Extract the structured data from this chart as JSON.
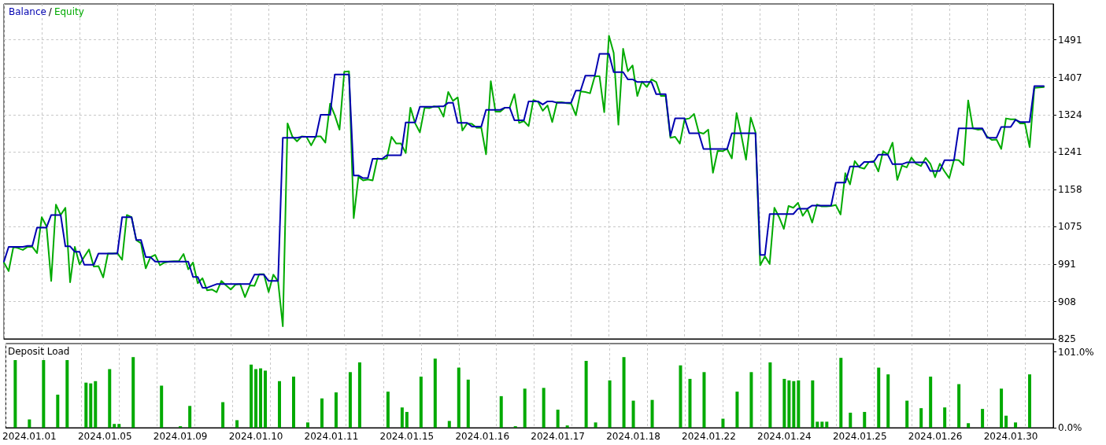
{
  "chart_data": [
    {
      "type": "line",
      "legend": "top left",
      "tick_labels": "y",
      "grid": true,
      "line_style": "solid",
      "annotations": [
        "/"
      ],
      "categories": [
        null,
        null,
        null,
        null,
        null,
        "2024.01.01",
        null,
        null,
        null,
        null,
        null,
        null,
        null,
        null,
        null,
        null,
        null,
        null,
        null,
        null,
        null,
        "2024.01.05",
        null,
        null,
        null,
        null,
        null,
        null,
        null,
        null,
        null,
        null,
        null,
        null,
        null,
        null,
        null,
        "2024.01.09",
        null,
        null,
        null,
        null,
        null,
        null,
        null,
        null,
        null,
        null,
        null,
        null,
        null,
        null,
        null,
        "2024.01.10",
        null,
        null,
        null,
        null,
        null,
        null,
        null,
        null,
        null,
        null,
        null,
        null,
        null,
        null,
        null,
        "2024.01.11",
        null,
        null,
        null,
        null,
        null,
        null,
        null,
        null,
        null,
        null,
        null,
        null,
        null,
        null,
        null,
        "2024.01.15",
        null,
        null,
        null,
        null,
        null,
        null,
        null,
        null,
        null,
        null,
        null,
        null,
        null,
        null,
        null,
        "2024.01.16",
        null,
        null,
        null,
        null,
        null,
        null,
        null,
        null,
        null,
        null,
        null,
        null,
        null,
        null,
        null,
        "2024.01.17",
        null,
        null,
        null,
        null,
        null,
        null,
        null,
        null,
        null,
        null,
        null,
        null,
        null,
        null,
        null,
        "2024.01.18",
        null,
        null,
        null,
        null,
        null,
        null,
        null,
        null,
        null,
        null,
        null,
        null,
        null,
        null,
        null,
        "2024.01.22",
        null,
        null,
        null,
        null,
        null,
        null,
        null,
        null,
        null,
        null,
        null,
        null,
        null,
        null,
        null,
        "2024.01.24",
        null,
        null,
        null,
        null,
        null,
        null,
        null,
        null,
        null,
        null,
        null,
        null,
        null,
        null,
        null,
        "2024.01.25",
        null,
        null,
        null,
        null,
        null,
        null,
        null,
        null,
        null,
        null,
        null,
        null,
        null,
        null,
        null,
        "2024.01.26",
        null,
        null,
        null,
        null,
        null,
        null,
        null,
        null,
        null,
        null,
        null,
        null,
        null,
        null,
        null,
        "2024.01.30",
        null,
        null,
        null,
        null,
        null,
        null,
        null,
        null,
        null
      ],
      "series": [
        {
          "name": "Balance",
          "color": "#0000b0",
          "values": [
            997,
            1030,
            1030,
            1030,
            1030,
            1032,
            1032,
            1073,
            1073,
            1073,
            1101,
            1101,
            1101,
            1031,
            1031,
            1019,
            1019,
            990,
            990,
            990,
            1015,
            1015,
            1015,
            1015,
            1015,
            1096,
            1096,
            1096,
            1045,
            1045,
            1007,
            1007,
            997,
            997,
            997,
            997,
            997,
            997,
            997,
            997,
            963,
            963,
            939,
            939,
            943,
            947,
            947,
            947,
            947,
            947,
            947,
            947,
            947,
            968,
            968,
            968,
            954,
            954,
            954,
            1273,
            1273,
            1273,
            1273,
            1275,
            1275,
            1275,
            1275,
            1324,
            1324,
            1324,
            1414,
            1414,
            1414,
            1414,
            1189,
            1189,
            1183,
            1183,
            1226,
            1226,
            1226,
            1234,
            1234,
            1234,
            1234,
            1307,
            1307,
            1307,
            1342,
            1342,
            1342,
            1342,
            1343,
            1343,
            1351,
            1351,
            1306,
            1306,
            1306,
            1298,
            1298,
            1298,
            1335,
            1335,
            1335,
            1335,
            1340,
            1340,
            1312,
            1312,
            1312,
            1354,
            1354,
            1354,
            1347,
            1354,
            1354,
            1351,
            1351,
            1351,
            1351,
            1378,
            1378,
            1411,
            1411,
            1411,
            1460,
            1460,
            1460,
            1419,
            1419,
            1419,
            1403,
            1403,
            1397,
            1397,
            1397,
            1397,
            1370,
            1370,
            1370,
            1277,
            1316,
            1316,
            1316,
            1283,
            1283,
            1283,
            1248,
            1248,
            1248,
            1248,
            1248,
            1248,
            1283,
            1283,
            1283,
            1283,
            1283,
            1283,
            1012,
            1012,
            1103,
            1103,
            1103,
            1103,
            1103,
            1103,
            1115,
            1115,
            1115,
            1122,
            1122,
            1122,
            1122,
            1122,
            1173,
            1173,
            1173,
            1209,
            1209,
            1209,
            1219,
            1219,
            1219,
            1235,
            1235,
            1235,
            1214,
            1214,
            1214,
            1218,
            1218,
            1218,
            1218,
            1218,
            1199,
            1199,
            1199,
            1223,
            1223,
            1223,
            1294,
            1294,
            1294,
            1294,
            1294,
            1294,
            1273,
            1273,
            1273,
            1297,
            1297,
            1297,
            1313,
            1308,
            1308,
            1308,
            1388,
            1388,
            1388,
            null,
            null
          ]
        },
        {
          "name": "Equity",
          "color": "#00aa00",
          "values": [
            995,
            976,
            1030,
            1027,
            1023,
            1030,
            1030,
            1016,
            1096,
            1076,
            954,
            1124,
            1101,
            1117,
            951,
            1030,
            991,
            1008,
            1024,
            986,
            987,
            962,
            1015,
            1015,
            1016,
            1001,
            1101,
            1096,
            1045,
            1038,
            982,
            1007,
            1012,
            989,
            995,
            997,
            998,
            998,
            1014,
            980,
            995,
            949,
            960,
            933,
            935,
            929,
            954,
            944,
            935,
            946,
            947,
            918,
            944,
            943,
            969,
            969,
            929,
            968,
            953,
            853,
            1305,
            1276,
            1265,
            1276,
            1275,
            1256,
            1276,
            1276,
            1262,
            1349,
            1323,
            1291,
            1420,
            1421,
            1094,
            1186,
            1178,
            1180,
            1178,
            1227,
            1225,
            1227,
            1275,
            1260,
            1260,
            1239,
            1340,
            1305,
            1285,
            1340,
            1339,
            1343,
            1341,
            1320,
            1375,
            1355,
            1363,
            1289,
            1305,
            1304,
            1295,
            1295,
            1236,
            1399,
            1331,
            1331,
            1340,
            1340,
            1370,
            1306,
            1310,
            1299,
            1357,
            1353,
            1333,
            1345,
            1308,
            1352,
            1352,
            1350,
            1349,
            1323,
            1376,
            1375,
            1372,
            1410,
            1410,
            1330,
            1500,
            1462,
            1302,
            1471,
            1421,
            1434,
            1366,
            1398,
            1386,
            1403,
            1397,
            1366,
            1366,
            1273,
            1275,
            1260,
            1314,
            1316,
            1326,
            1285,
            1282,
            1291,
            1195,
            1244,
            1243,
            1248,
            1227,
            1328,
            1279,
            1224,
            1318,
            1285,
            989,
            1009,
            992,
            1117,
            1096,
            1070,
            1121,
            1117,
            1128,
            1099,
            1114,
            1084,
            1124,
            1120,
            1120,
            1121,
            1123,
            1102,
            1194,
            1169,
            1221,
            1207,
            1204,
            1219,
            1221,
            1198,
            1243,
            1236,
            1262,
            1179,
            1211,
            1207,
            1229,
            1215,
            1210,
            1228,
            1215,
            1185,
            1215,
            1198,
            1183,
            1224,
            1223,
            1212,
            1356,
            1294,
            1291,
            1292,
            1276,
            1268,
            1269,
            1248,
            1316,
            1314,
            1314,
            1305,
            1305,
            1252,
            1384,
            1385,
            1386,
            null,
            null
          ]
        }
      ],
      "ylim": [
        825,
        1571
      ],
      "yticks": [
        825,
        908,
        991,
        1075,
        1158,
        1241,
        1324,
        1407,
        1491
      ]
    },
    {
      "type": "bar",
      "title": "Deposit Load",
      "grid": "x",
      "color": "#00aa00",
      "categories": [
        null,
        null,
        null,
        null,
        null,
        "2024.01.01",
        null,
        null,
        null,
        null,
        null,
        null,
        null,
        null,
        null,
        null,
        null,
        null,
        null,
        null,
        null,
        "2024.01.05",
        null,
        null,
        null,
        null,
        null,
        null,
        null,
        null,
        null,
        null,
        null,
        null,
        null,
        null,
        null,
        "2024.01.09",
        null,
        null,
        null,
        null,
        null,
        null,
        null,
        null,
        null,
        null,
        null,
        null,
        null,
        null,
        null,
        "2024.01.10",
        null,
        null,
        null,
        null,
        null,
        null,
        null,
        null,
        null,
        null,
        null,
        null,
        null,
        null,
        null,
        "2024.01.11",
        null,
        null,
        null,
        null,
        null,
        null,
        null,
        null,
        null,
        null,
        null,
        null,
        null,
        null,
        null,
        "2024.01.15",
        null,
        null,
        null,
        null,
        null,
        null,
        null,
        null,
        null,
        null,
        null,
        null,
        null,
        null,
        null,
        "2024.01.16",
        null,
        null,
        null,
        null,
        null,
        null,
        null,
        null,
        null,
        null,
        null,
        null,
        null,
        null,
        null,
        "2024.01.17",
        null,
        null,
        null,
        null,
        null,
        null,
        null,
        null,
        null,
        null,
        null,
        null,
        null,
        null,
        null,
        "2024.01.18",
        null,
        null,
        null,
        null,
        null,
        null,
        null,
        null,
        null,
        null,
        null,
        null,
        null,
        null,
        null,
        "2024.01.22",
        null,
        null,
        null,
        null,
        null,
        null,
        null,
        null,
        null,
        null,
        null,
        null,
        null,
        null,
        null,
        "2024.01.24",
        null,
        null,
        null,
        null,
        null,
        null,
        null,
        null,
        null,
        null,
        null,
        null,
        null,
        null,
        null,
        "2024.01.25",
        null,
        null,
        null,
        null,
        null,
        null,
        null,
        null,
        null,
        null,
        null,
        null,
        null,
        null,
        null,
        "2024.01.26",
        null,
        null,
        null,
        null,
        null,
        null,
        null,
        null,
        null,
        null,
        null,
        null,
        null,
        null,
        null,
        "2024.01.30",
        null,
        null,
        null,
        null,
        null,
        null,
        null,
        null,
        null
      ],
      "values": [
        null,
        null,
        90,
        null,
        null,
        11,
        null,
        null,
        90,
        null,
        null,
        44,
        null,
        90,
        null,
        null,
        null,
        60,
        59,
        62,
        null,
        null,
        78,
        5,
        5,
        null,
        null,
        94,
        null,
        null,
        null,
        null,
        null,
        56,
        null,
        null,
        null,
        2,
        null,
        29,
        null,
        null,
        null,
        null,
        null,
        null,
        34,
        null,
        null,
        10,
        null,
        null,
        84,
        78,
        79,
        76,
        null,
        null,
        62,
        null,
        null,
        68,
        null,
        null,
        7,
        null,
        null,
        39,
        null,
        null,
        47,
        null,
        null,
        74,
        null,
        87,
        null,
        null,
        null,
        null,
        null,
        48,
        null,
        null,
        27,
        21,
        null,
        null,
        68,
        null,
        null,
        92,
        null,
        null,
        9,
        null,
        80,
        null,
        64,
        null,
        null,
        null,
        null,
        null,
        null,
        42,
        null,
        null,
        2,
        null,
        52,
        null,
        null,
        null,
        53,
        null,
        null,
        24,
        null,
        3,
        null,
        null,
        null,
        89,
        null,
        7,
        null,
        null,
        63,
        null,
        null,
        94,
        null,
        36,
        null,
        null,
        null,
        37,
        null,
        null,
        null,
        null,
        null,
        83,
        null,
        65,
        null,
        null,
        74,
        null,
        null,
        null,
        12,
        null,
        null,
        48,
        null,
        null,
        74,
        null,
        null,
        null,
        87,
        null,
        null,
        65,
        63,
        62,
        63,
        null,
        null,
        63,
        8,
        8,
        8,
        null,
        null,
        93,
        null,
        20,
        null,
        null,
        21,
        null,
        null,
        80,
        null,
        71,
        null,
        null,
        null,
        36,
        null,
        null,
        26,
        null,
        68,
        null,
        null,
        27,
        null,
        null,
        58,
        null,
        6,
        null,
        null,
        25,
        null,
        null,
        null,
        52,
        16,
        null,
        7,
        null,
        null,
        71,
        null,
        null,
        null,
        null,
        null
      ],
      "ylim": [
        0,
        112
      ],
      "yticks": [
        {
          "value": 0,
          "label": "0.0%"
        },
        {
          "value": 101,
          "label": "101.0%"
        }
      ]
    }
  ]
}
